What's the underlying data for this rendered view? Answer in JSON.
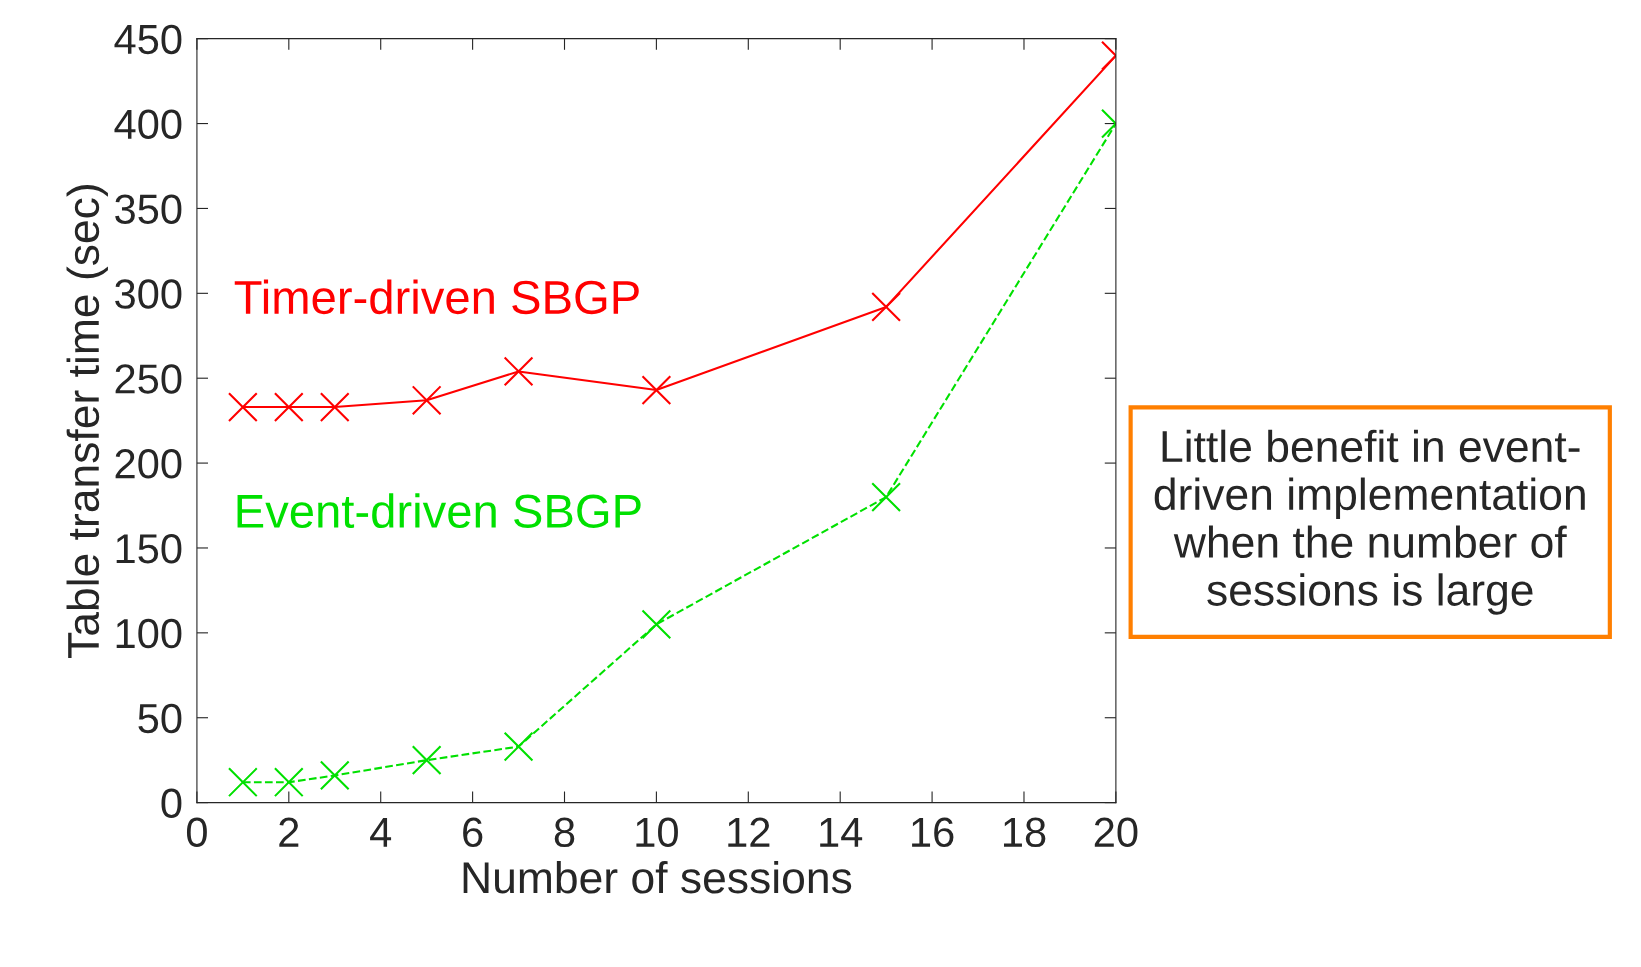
{
  "chart_data": {
    "type": "line",
    "xlabel": "Number of sessions",
    "ylabel": "Table transfer time (sec)",
    "x": [
      1,
      2,
      3,
      5,
      7,
      10,
      15,
      20
    ],
    "series": [
      {
        "name": "Timer-driven SBGP",
        "color": "#ff0000",
        "marker": "cross",
        "line_style": "solid",
        "values": [
          233,
          233,
          233,
          237,
          254,
          243,
          292,
          440
        ]
      },
      {
        "name": "Event-driven SBGP",
        "color": "#00e000",
        "marker": "cross",
        "line_style": "dashed",
        "values": [
          12,
          12,
          16,
          25,
          33,
          105,
          180,
          400
        ]
      }
    ],
    "xlim": [
      0,
      20
    ],
    "ylim": [
      0,
      450
    ],
    "xticks": [
      0,
      2,
      4,
      6,
      8,
      10,
      12,
      14,
      16,
      18,
      20
    ],
    "yticks": [
      0,
      50,
      100,
      150,
      200,
      250,
      300,
      350,
      400,
      450
    ],
    "grid": false,
    "legend": false,
    "annotations": [
      "Little benefit in event-\ndriven implementation\nwhen the number of\nsessions is large"
    ]
  }
}
